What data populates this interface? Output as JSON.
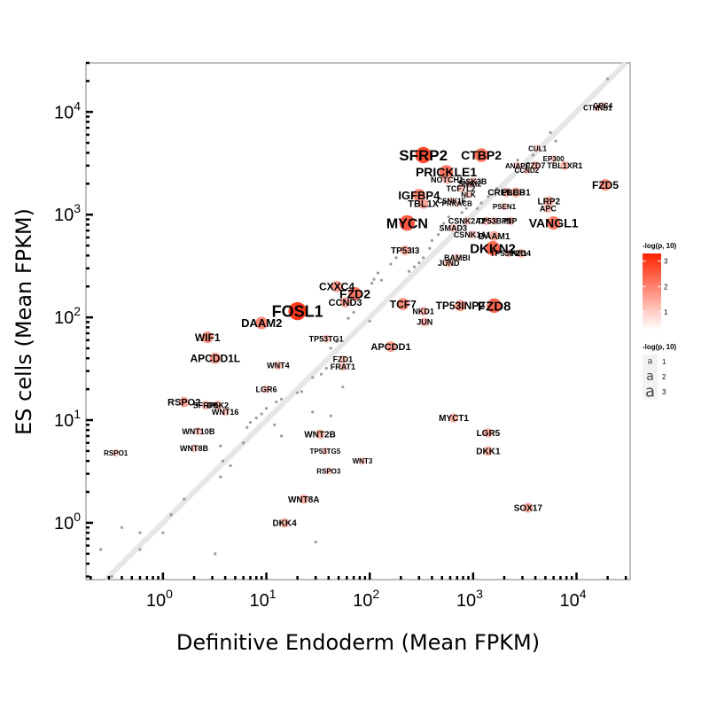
{
  "chart_data": {
    "type": "scatter",
    "title": "",
    "xlabel": "Definitive Endoderm (Mean FPKM)",
    "ylabel": "ES cells (Mean FPKM)",
    "xscale": "log10",
    "yscale": "log10",
    "xlim": [
      0.18,
      33000
    ],
    "ylim": [
      0.28,
      30000
    ],
    "x_tick_values": [
      1,
      10,
      100,
      1000,
      10000
    ],
    "y_tick_values": [
      1,
      10,
      100,
      1000,
      10000
    ],
    "x_tick_labels": [
      {
        "base": "10",
        "exp": "0"
      },
      {
        "base": "10",
        "exp": "1"
      },
      {
        "base": "10",
        "exp": "2"
      },
      {
        "base": "10",
        "exp": "3"
      },
      {
        "base": "10",
        "exp": "4"
      }
    ],
    "y_tick_labels": [
      {
        "base": "10",
        "exp": "0"
      },
      {
        "base": "10",
        "exp": "1"
      },
      {
        "base": "10",
        "exp": "2"
      },
      {
        "base": "10",
        "exp": "3"
      },
      {
        "base": "10",
        "exp": "4"
      }
    ],
    "reference_line": "y = x",
    "legend_color": {
      "title": "-log(p, 10)",
      "ticks": [
        "1",
        "2",
        "3"
      ],
      "colors": [
        "#ffffff",
        "#ff2200"
      ]
    },
    "legend_size": {
      "title": "-log(p, 10)",
      "entries": [
        {
          "label": "1",
          "glyph": "a",
          "size": 1
        },
        {
          "label": "2",
          "glyph": "a",
          "size": 2
        },
        {
          "label": "3",
          "glyph": "a",
          "size": 3
        }
      ]
    },
    "points": [
      {
        "label": "FOSL1",
        "x": 20,
        "y": 115,
        "p": 3.4
      },
      {
        "label": "SFRP2",
        "x": 330,
        "y": 3800,
        "p": 3.0
      },
      {
        "label": "MYCN",
        "x": 230,
        "y": 830,
        "p": 2.8
      },
      {
        "label": "DKKN2",
        "x": 1550,
        "y": 470,
        "p": 2.6
      },
      {
        "label": "FZD8",
        "x": 1600,
        "y": 130,
        "p": 2.6
      },
      {
        "label": "CTBP2",
        "x": 1200,
        "y": 3800,
        "p": 2.4
      },
      {
        "label": "PRICKLE1",
        "x": 550,
        "y": 2600,
        "p": 2.4
      },
      {
        "label": "VANGL1",
        "x": 6000,
        "y": 830,
        "p": 2.3
      },
      {
        "label": "FZD2",
        "x": 72,
        "y": 170,
        "p": 2.3
      },
      {
        "label": "DAAM2",
        "x": 9,
        "y": 88,
        "p": 2.1
      },
      {
        "label": "IGFBP4",
        "x": 300,
        "y": 1550,
        "p": 2.1
      },
      {
        "label": "TCF7",
        "x": 210,
        "y": 135,
        "p": 2.0
      },
      {
        "label": "FZD5",
        "x": 19000,
        "y": 1950,
        "p": 1.9
      },
      {
        "label": "WIF1",
        "x": 2.7,
        "y": 64,
        "p": 1.9
      },
      {
        "label": "APCDD1L",
        "x": 3.2,
        "y": 40,
        "p": 1.8
      },
      {
        "label": "CXXC4",
        "x": 48,
        "y": 200,
        "p": 1.8
      },
      {
        "label": "APCDD1",
        "x": 160,
        "y": 52,
        "p": 1.7
      },
      {
        "label": "TP53INP2",
        "x": 750,
        "y": 130,
        "p": 1.8
      },
      {
        "label": "RSPO2",
        "x": 1.6,
        "y": 15,
        "p": 1.6
      },
      {
        "label": "CCND3",
        "x": 58,
        "y": 140,
        "p": 1.6
      },
      {
        "label": "TBL1X",
        "x": 330,
        "y": 1280,
        "p": 1.6
      },
      {
        "label": "LRP2",
        "x": 5400,
        "y": 1350,
        "p": 1.5
      },
      {
        "label": "DAAM1",
        "x": 1600,
        "y": 620,
        "p": 1.5
      },
      {
        "label": "PLCB1",
        "x": 2600,
        "y": 1650,
        "p": 1.5
      },
      {
        "label": "CREBBP",
        "x": 2100,
        "y": 1650,
        "p": 1.4
      },
      {
        "label": "SOX17",
        "x": 3400,
        "y": 1.4,
        "p": 1.5
      },
      {
        "label": "TP53I3",
        "x": 220,
        "y": 450,
        "p": 1.5
      },
      {
        "label": "MYCT1",
        "x": 650,
        "y": 10.5,
        "p": 1.4
      },
      {
        "label": "WNT2B",
        "x": 33,
        "y": 7.3,
        "p": 1.4
      },
      {
        "label": "LGR5",
        "x": 1400,
        "y": 7.5,
        "p": 1.4
      },
      {
        "label": "DKK1",
        "x": 1400,
        "y": 5,
        "p": 1.4
      },
      {
        "label": "WNT8A",
        "x": 23,
        "y": 1.7,
        "p": 1.4
      },
      {
        "label": "DKK4",
        "x": 15,
        "y": 1.0,
        "p": 1.4
      },
      {
        "label": "SFRP5",
        "x": 2.6,
        "y": 14,
        "p": 1.3
      },
      {
        "label": "DKK2",
        "x": 3.4,
        "y": 14,
        "p": 1.3
      },
      {
        "label": "NKD1",
        "x": 330,
        "y": 115,
        "p": 1.3
      },
      {
        "label": "JUN",
        "x": 340,
        "y": 90,
        "p": 1.3
      },
      {
        "label": "JUND",
        "x": 580,
        "y": 340,
        "p": 1.3
      },
      {
        "label": "FZD4",
        "x": 2900,
        "y": 420,
        "p": 1.3
      },
      {
        "label": "NOTCH1",
        "x": 560,
        "y": 2200,
        "p": 1.3
      },
      {
        "label": "FZD7",
        "x": 4000,
        "y": 3000,
        "p": 1.3
      },
      {
        "label": "APC",
        "x": 5300,
        "y": 1150,
        "p": 1.3
      },
      {
        "label": "TBL1XR1",
        "x": 7700,
        "y": 3000,
        "p": 1.3
      },
      {
        "label": "GSK3B",
        "x": 1000,
        "y": 2100,
        "p": 1.2
      },
      {
        "label": "TP53",
        "x": 1350,
        "y": 870,
        "p": 1.2
      },
      {
        "label": "INP",
        "x": 2300,
        "y": 870,
        "p": 1.2
      },
      {
        "label": "WNT4",
        "x": 13,
        "y": 34,
        "p": 1.2
      },
      {
        "label": "LGR6",
        "x": 10,
        "y": 20,
        "p": 1.1
      },
      {
        "label": "WNT16",
        "x": 4,
        "y": 12,
        "p": 1.1
      },
      {
        "label": "WNT10B",
        "x": 2.2,
        "y": 7.8,
        "p": 1.1
      },
      {
        "label": "WNT8B",
        "x": 2.0,
        "y": 5.3,
        "p": 1.1
      },
      {
        "label": "TP53TG1",
        "x": 38,
        "y": 62,
        "p": 1.1
      },
      {
        "label": "FZD1",
        "x": 55,
        "y": 39,
        "p": 1.1
      },
      {
        "label": "FRAT1",
        "x": 55,
        "y": 33,
        "p": 1.1
      },
      {
        "label": "BAMBI",
        "x": 700,
        "y": 380,
        "p": 1.1
      },
      {
        "label": "TP53INP1",
        "x": 2200,
        "y": 420,
        "p": 1.1
      },
      {
        "label": "RSPO1",
        "x": 0.35,
        "y": 4.8,
        "p": 1.0
      },
      {
        "label": "TP53TG5",
        "x": 37,
        "y": 5.0,
        "p": 1.0
      },
      {
        "label": "RSPO3",
        "x": 40,
        "y": 3.2,
        "p": 1.0
      },
      {
        "label": "WNT3",
        "x": 85,
        "y": 4.0,
        "p": 1.0
      },
      {
        "label": "SNAI2",
        "x": 930,
        "y": 2000,
        "p": 1.2
      },
      {
        "label": "TCF7L2",
        "x": 760,
        "y": 1800,
        "p": 1.1
      },
      {
        "label": "NLK",
        "x": 900,
        "y": 1570,
        "p": 1.0
      },
      {
        "label": "CSNK2A2",
        "x": 870,
        "y": 870,
        "p": 1.1
      },
      {
        "label": "TP53BP1",
        "x": 1600,
        "y": 870,
        "p": 1.1
      },
      {
        "label": "SMAD3",
        "x": 640,
        "y": 740,
        "p": 1.1
      },
      {
        "label": "CSNK1A1",
        "x": 980,
        "y": 640,
        "p": 1.1
      },
      {
        "label": "PSEN1",
        "x": 2000,
        "y": 1200,
        "p": 1.0
      },
      {
        "label": "CCND2",
        "x": 3300,
        "y": 2700,
        "p": 1.0
      },
      {
        "label": "PRKACB",
        "x": 700,
        "y": 1290,
        "p": 1.0
      },
      {
        "label": "CSNK1E",
        "x": 620,
        "y": 1360,
        "p": 1.0
      },
      {
        "label": "ANAPC",
        "x": 2700,
        "y": 3000,
        "p": 1.0
      },
      {
        "label": "CTNNB1",
        "x": 16000,
        "y": 11000,
        "p": 1.0
      },
      {
        "label": "GPC4",
        "x": 18000,
        "y": 11500,
        "p": 1.0
      },
      {
        "label": "EP300",
        "x": 6000,
        "y": 3500,
        "p": 1.0
      },
      {
        "label": "CUL1",
        "x": 4200,
        "y": 4400,
        "p": 1.0
      }
    ],
    "small_points": [
      {
        "x": 20000,
        "y": 21000
      },
      {
        "x": 5600,
        "y": 6300
      },
      {
        "x": 6300,
        "y": 5200
      },
      {
        "x": 3800,
        "y": 3800
      },
      {
        "x": 2700,
        "y": 3400
      },
      {
        "x": 1700,
        "y": 1800
      },
      {
        "x": 1400,
        "y": 1500
      },
      {
        "x": 1200,
        "y": 1300
      },
      {
        "x": 1100,
        "y": 1150
      },
      {
        "x": 780,
        "y": 1050
      },
      {
        "x": 860,
        "y": 1150
      },
      {
        "x": 580,
        "y": 950
      },
      {
        "x": 520,
        "y": 820
      },
      {
        "x": 460,
        "y": 640
      },
      {
        "x": 400,
        "y": 560
      },
      {
        "x": 380,
        "y": 470
      },
      {
        "x": 330,
        "y": 380
      },
      {
        "x": 300,
        "y": 340
      },
      {
        "x": 270,
        "y": 310
      },
      {
        "x": 240,
        "y": 280
      },
      {
        "x": 180,
        "y": 380
      },
      {
        "x": 160,
        "y": 330
      },
      {
        "x": 120,
        "y": 270
      },
      {
        "x": 110,
        "y": 235
      },
      {
        "x": 105,
        "y": 215
      },
      {
        "x": 75,
        "y": 185
      },
      {
        "x": 68,
        "y": 160
      },
      {
        "x": 62,
        "y": 150
      },
      {
        "x": 130,
        "y": 230
      },
      {
        "x": 70,
        "y": 112
      },
      {
        "x": 62,
        "y": 98
      },
      {
        "x": 100,
        "y": 92
      },
      {
        "x": 48,
        "y": 58
      },
      {
        "x": 42,
        "y": 50
      },
      {
        "x": 38,
        "y": 32
      },
      {
        "x": 34,
        "y": 28
      },
      {
        "x": 28,
        "y": 26
      },
      {
        "x": 22,
        "y": 19
      },
      {
        "x": 20,
        "y": 18.5
      },
      {
        "x": 14,
        "y": 16
      },
      {
        "x": 12.5,
        "y": 15
      },
      {
        "x": 10,
        "y": 13
      },
      {
        "x": 9,
        "y": 11.5
      },
      {
        "x": 8,
        "y": 10.5
      },
      {
        "x": 7,
        "y": 9.5
      },
      {
        "x": 6.5,
        "y": 8.5
      },
      {
        "x": 6,
        "y": 6
      },
      {
        "x": 3.6,
        "y": 5.6
      },
      {
        "x": 3.8,
        "y": 4
      },
      {
        "x": 4.5,
        "y": 3.6
      },
      {
        "x": 3.6,
        "y": 2.8
      },
      {
        "x": 1.6,
        "y": 1.7
      },
      {
        "x": 1.2,
        "y": 1.2
      },
      {
        "x": 0.6,
        "y": 0.8
      },
      {
        "x": 1.0,
        "y": 0.8
      },
      {
        "x": 0.6,
        "y": 0.55
      },
      {
        "x": 0.4,
        "y": 0.9
      },
      {
        "x": 0.25,
        "y": 0.55
      },
      {
        "x": 0.32,
        "y": 0.3
      },
      {
        "x": 3.2,
        "y": 0.5
      },
      {
        "x": 30,
        "y": 0.65
      },
      {
        "x": 12,
        "y": 9
      },
      {
        "x": 14,
        "y": 7
      },
      {
        "x": 28,
        "y": 12
      },
      {
        "x": 42,
        "y": 11
      },
      {
        "x": 55,
        "y": 21
      }
    ]
  }
}
